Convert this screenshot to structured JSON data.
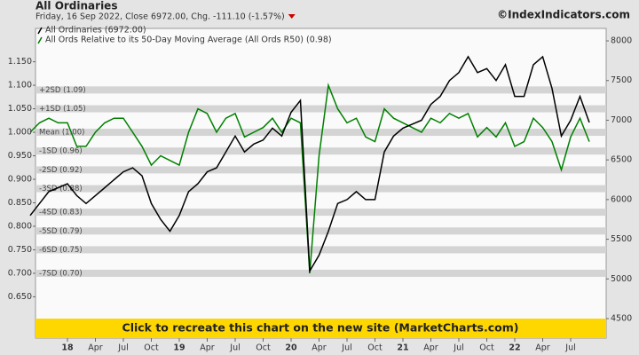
{
  "chart_data": {
    "type": "line",
    "title": "All Ordinaries",
    "subtitle": "Friday, 16 Sep 2022, Close 6972.00, Chg. -111.10 (-1.57%)",
    "source": "©IndexIndicators.com",
    "banner": "Click to recreate this chart on the new site (MarketCharts.com)",
    "x": [
      "2017-09",
      "2017-10",
      "2017-11",
      "2017-12",
      "2018-01",
      "2018-02",
      "2018-03",
      "2018-04",
      "2018-05",
      "2018-06",
      "2018-07",
      "2018-08",
      "2018-09",
      "2018-10",
      "2018-11",
      "2018-12",
      "2019-01",
      "2019-02",
      "2019-03",
      "2019-04",
      "2019-05",
      "2019-06",
      "2019-07",
      "2019-08",
      "2019-09",
      "2019-10",
      "2019-11",
      "2019-12",
      "2020-01",
      "2020-02",
      "2020-03",
      "2020-04",
      "2020-05",
      "2020-06",
      "2020-07",
      "2020-08",
      "2020-09",
      "2020-10",
      "2020-11",
      "2020-12",
      "2021-01",
      "2021-02",
      "2021-03",
      "2021-04",
      "2021-05",
      "2021-06",
      "2021-07",
      "2021-08",
      "2021-09",
      "2021-10",
      "2021-11",
      "2021-12",
      "2022-01",
      "2022-02",
      "2022-03",
      "2022-04",
      "2022-05",
      "2022-06",
      "2022-07",
      "2022-08",
      "2022-09"
    ],
    "xticks": [
      {
        "value": "2018-01",
        "label": "18"
      },
      {
        "value": "2018-04",
        "label": "Apr"
      },
      {
        "value": "2018-07",
        "label": "Jul"
      },
      {
        "value": "2018-10",
        "label": "Oct"
      },
      {
        "value": "2019-01",
        "label": "19"
      },
      {
        "value": "2019-04",
        "label": "Apr"
      },
      {
        "value": "2019-07",
        "label": "Jul"
      },
      {
        "value": "2019-10",
        "label": "Oct"
      },
      {
        "value": "2020-01",
        "label": "20"
      },
      {
        "value": "2020-04",
        "label": "Apr"
      },
      {
        "value": "2020-07",
        "label": "Jul"
      },
      {
        "value": "2020-10",
        "label": "Oct"
      },
      {
        "value": "2021-01",
        "label": "21"
      },
      {
        "value": "2021-04",
        "label": "Apr"
      },
      {
        "value": "2021-07",
        "label": "Jul"
      },
      {
        "value": "2021-10",
        "label": "Oct"
      },
      {
        "value": "2022-01",
        "label": "22"
      },
      {
        "value": "2022-04",
        "label": "Apr"
      },
      {
        "value": "2022-07",
        "label": "Jul"
      }
    ],
    "series": [
      {
        "name": "All Ordinaries (6972.00)",
        "color": "#000000",
        "axis": "y2",
        "values": [
          5800,
          5950,
          6100,
          6150,
          6200,
          6050,
          5950,
          6050,
          6150,
          6250,
          6350,
          6400,
          6300,
          5950,
          5750,
          5600,
          5800,
          6100,
          6200,
          6350,
          6400,
          6600,
          6800,
          6600,
          6700,
          6750,
          6900,
          6800,
          7100,
          7250,
          5100,
          5300,
          5600,
          5950,
          6000,
          6100,
          6000,
          6000,
          6600,
          6800,
          6900,
          6950,
          7000,
          7200,
          7300,
          7500,
          7600,
          7800,
          7600,
          7650,
          7500,
          7700,
          7300,
          7300,
          7700,
          7800,
          7400,
          6800,
          7000,
          7300,
          6972
        ]
      },
      {
        "name": "All Ords Relative to its 50-Day Moving Average (All Ords R50) (0.98)",
        "color": "#008000",
        "values": [
          1.0,
          1.02,
          1.03,
          1.02,
          1.02,
          0.97,
          0.97,
          1.0,
          1.02,
          1.03,
          1.03,
          1.0,
          0.97,
          0.93,
          0.95,
          0.94,
          0.93,
          1.0,
          1.05,
          1.04,
          1.0,
          1.03,
          1.04,
          0.99,
          1.0,
          1.01,
          1.03,
          1.0,
          1.03,
          1.02,
          0.7,
          0.95,
          1.1,
          1.05,
          1.02,
          1.03,
          0.99,
          0.98,
          1.05,
          1.03,
          1.02,
          1.01,
          1.0,
          1.03,
          1.02,
          1.04,
          1.03,
          1.04,
          0.99,
          1.01,
          0.99,
          1.02,
          0.97,
          0.98,
          1.03,
          1.01,
          0.98,
          0.92,
          0.99,
          1.03,
          0.98
        ]
      }
    ],
    "sd_bands": [
      {
        "label": "+2SD (1.09)",
        "value": 1.09
      },
      {
        "label": "+1SD (1.05)",
        "value": 1.05
      },
      {
        "label": "Mean (1.00)",
        "value": 1.0
      },
      {
        "label": "-1SD (0.96)",
        "value": 0.96
      },
      {
        "label": "-2SD (0.92)",
        "value": 0.92
      },
      {
        "label": "-3SD (0.88)",
        "value": 0.88
      },
      {
        "label": "-4SD (0.83)",
        "value": 0.83
      },
      {
        "label": "-5SD (0.79)",
        "value": 0.79
      },
      {
        "label": "-6SD (0.75)",
        "value": 0.75
      },
      {
        "label": "-7SD (0.70)",
        "value": 0.7
      }
    ],
    "ylim": [
      0.562,
      1.221
    ],
    "yticks": [
      {
        "value": 0.65,
        "label": "0.650"
      },
      {
        "value": 0.7,
        "label": "0.700"
      },
      {
        "value": 0.75,
        "label": "0.750"
      },
      {
        "value": 0.8,
        "label": "0.800"
      },
      {
        "value": 0.85,
        "label": "0.850"
      },
      {
        "value": 0.9,
        "label": "0.900"
      },
      {
        "value": 0.95,
        "label": "0.950"
      },
      {
        "value": 1.0,
        "label": "1.000"
      },
      {
        "value": 1.05,
        "label": "1.050"
      },
      {
        "value": 1.1,
        "label": "1.100"
      },
      {
        "value": 1.15,
        "label": "1.150"
      }
    ],
    "y2lim": [
      4254,
      8157
    ],
    "y2ticks": [
      4500,
      5000,
      5500,
      6000,
      6500,
      7000,
      7500,
      8000
    ]
  }
}
